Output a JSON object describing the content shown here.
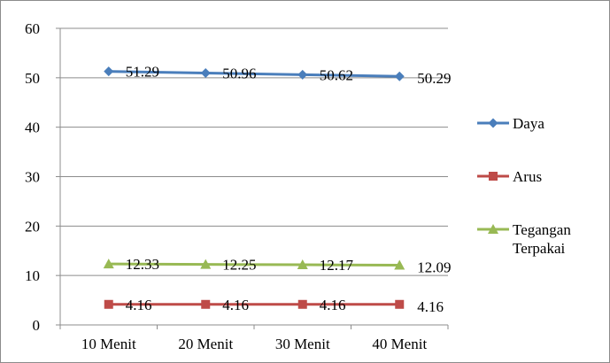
{
  "chart_data": {
    "type": "line",
    "categories": [
      "10 Menit",
      "20 Menit",
      "30 Menit",
      "40 Menit"
    ],
    "ylim": [
      0,
      60
    ],
    "yticks": [
      0,
      10,
      20,
      30,
      40,
      50,
      60
    ],
    "grid": "horizontal",
    "legend_position": "right",
    "title": "",
    "xlabel": "",
    "ylabel": "",
    "series": [
      {
        "name": "Daya",
        "marker": "diamond",
        "color": "#4a7ebb",
        "values": [
          51.29,
          50.96,
          50.62,
          50.29
        ],
        "labels": [
          "51.29",
          "50.96",
          "50.62",
          "50.29"
        ]
      },
      {
        "name": "Arus",
        "marker": "square",
        "color": "#be4b48",
        "values": [
          4.16,
          4.16,
          4.16,
          4.16
        ],
        "labels": [
          "4.16",
          "4.16",
          "4.16",
          "4.16"
        ]
      },
      {
        "name": "Tegangan Terpakai",
        "legend_lines": [
          "Tegangan",
          "Terpakai"
        ],
        "marker": "triangle",
        "color": "#98b954",
        "values": [
          12.33,
          12.25,
          12.17,
          12.09
        ],
        "labels": [
          "12.33",
          "12.25",
          "12.17",
          "12.09"
        ]
      }
    ]
  }
}
